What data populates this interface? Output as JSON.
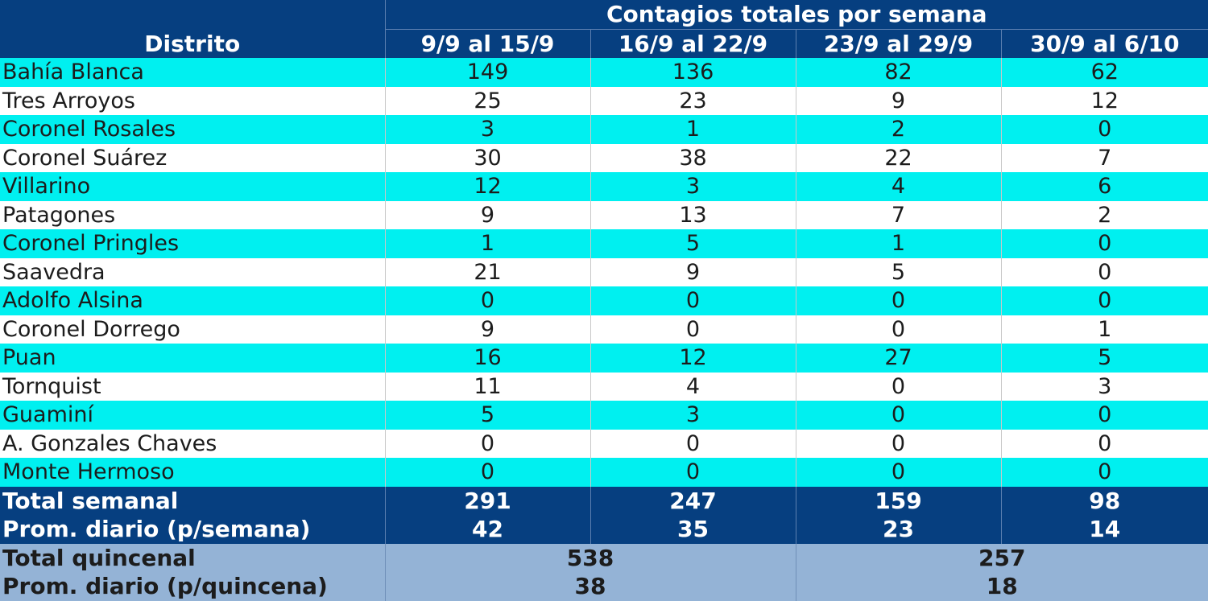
{
  "chart_data": {
    "type": "table",
    "header": {
      "district": "Distrito",
      "group": "Contagios totales por semana",
      "weeks": [
        "9/9 al 15/9",
        "16/9 al 22/9",
        "23/9 al 29/9",
        "30/9 al 6/10"
      ]
    },
    "rows": [
      {
        "name": "Bahía Blanca",
        "values": [
          "149",
          "136",
          "82",
          "62"
        ]
      },
      {
        "name": "Tres Arroyos",
        "values": [
          "25",
          "23",
          "9",
          "12"
        ]
      },
      {
        "name": "Coronel Rosales",
        "values": [
          "3",
          "1",
          "2",
          "0"
        ]
      },
      {
        "name": "Coronel Suárez",
        "values": [
          "30",
          "38",
          "22",
          "7"
        ]
      },
      {
        "name": "Villarino",
        "values": [
          "12",
          "3",
          "4",
          "6"
        ]
      },
      {
        "name": "Patagones",
        "values": [
          "9",
          "13",
          "7",
          "2"
        ]
      },
      {
        "name": "Coronel Pringles",
        "values": [
          "1",
          "5",
          "1",
          "0"
        ]
      },
      {
        "name": "Saavedra",
        "values": [
          "21",
          "9",
          "5",
          "0"
        ]
      },
      {
        "name": "Adolfo Alsina",
        "values": [
          "0",
          "0",
          "0",
          "0"
        ]
      },
      {
        "name": "Coronel Dorrego",
        "values": [
          "9",
          "0",
          "0",
          "1"
        ]
      },
      {
        "name": "Puan",
        "values": [
          "16",
          "12",
          "27",
          "5"
        ]
      },
      {
        "name": "Tornquist",
        "values": [
          "11",
          "4",
          "0",
          "3"
        ]
      },
      {
        "name": "Guaminí",
        "values": [
          "5",
          "3",
          "0",
          "0"
        ]
      },
      {
        "name": "A. Gonzales Chaves",
        "values": [
          "0",
          "0",
          "0",
          "0"
        ]
      },
      {
        "name": "Monte Hermoso",
        "values": [
          "0",
          "0",
          "0",
          "0"
        ]
      }
    ],
    "totals": [
      {
        "name": "Total semanal",
        "values": [
          "291",
          "247",
          "159",
          "98"
        ]
      },
      {
        "name": "Prom. diario (p/semana)",
        "values": [
          "42",
          "35",
          "23",
          "14"
        ]
      }
    ],
    "biweekly": [
      {
        "name": "Total quincenal",
        "values": [
          "538",
          "257"
        ]
      },
      {
        "name": "Prom. diario (p/quincena)",
        "values": [
          "38",
          "18"
        ]
      }
    ],
    "colors": {
      "header": "#063f80",
      "band": "#00f0f0",
      "biweekly": "#94b3d6"
    }
  }
}
